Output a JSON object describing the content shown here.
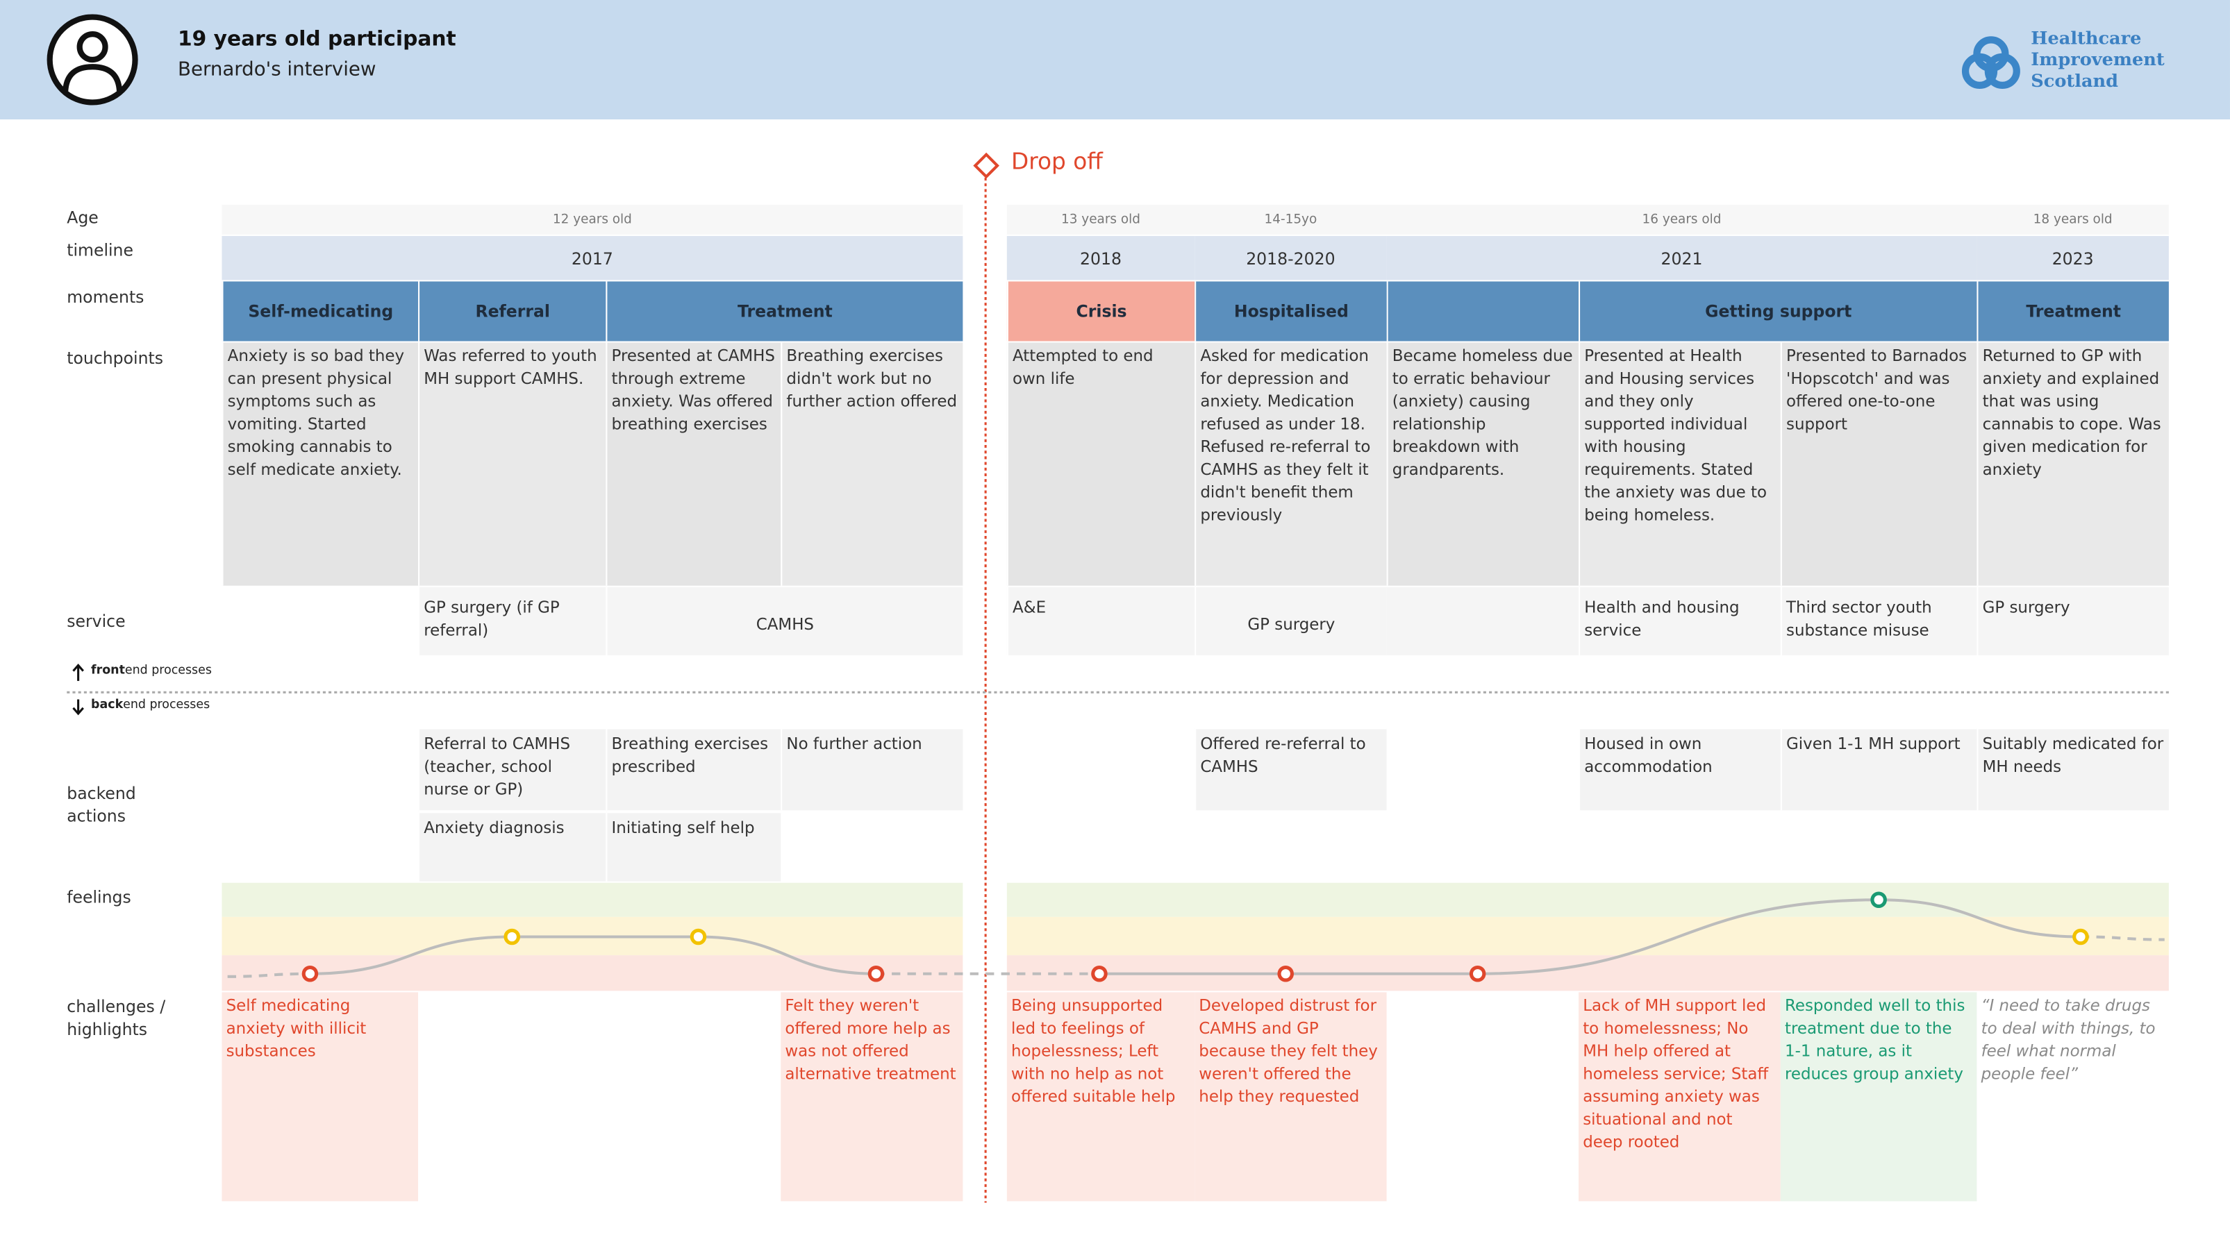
{
  "header": {
    "title": "19 years old participant",
    "subtitle": "Bernardo's interview",
    "logo": [
      "Healthcare",
      "Improvement",
      "Scotland"
    ]
  },
  "drop_off": "Drop off",
  "row_labels": {
    "age": "Age",
    "timeline": "timeline",
    "moments": "moments",
    "touchpoints": "touchpoints",
    "service": "service",
    "frontend_bold": "front",
    "frontend_rest": "end processes",
    "backend_bold": "back",
    "backend_rest": "end processes",
    "backend_actions": "backend actions",
    "feelings": "feelings",
    "challenges": "challenges / highlights"
  },
  "ages": [
    "12 years old",
    "13 years old",
    "14-15yo",
    "16 years old",
    "18 years old"
  ],
  "timeline": [
    "2017",
    "2018",
    "2018-2020",
    "2021",
    "2023"
  ],
  "moments": [
    "Self-medicating",
    "Referral",
    "Treatment",
    "Crisis",
    "Hospitalised",
    "Getting support",
    "Treatment"
  ],
  "touchpoints": [
    "Anxiety is so bad they can present physical symptoms such as vomiting. Started smoking cannabis to self medicate anxiety.",
    "Was referred to youth MH support CAMHS.",
    "Presented at CAMHS through extreme anxiety. Was offered breathing exercises",
    "Breathing exercises didn't work but no further action offered",
    "Attempted to end own life",
    "Asked for medication for depression and anxiety. Medication refused as under 18. Refused re-referral to CAMHS as they felt it didn't benefit them previously",
    "Became homeless due to erratic behaviour (anxiety) causing relationship breakdown with grandparents.",
    "Presented at Health and Housing services and they only supported individual with housing requirements. Stated the anxiety was due to being homeless.",
    "Presented to Barnados 'Hopscotch' and was offered one-to-one support",
    "Returned to GP with anxiety and explained that was using cannabis to cope. Was given medication for anxiety"
  ],
  "services": [
    "GP surgery (if GP referral)",
    "CAMHS",
    "A&E",
    "GP surgery",
    "Health and housing service",
    "Third sector youth substance misuse",
    "GP surgery"
  ],
  "backend_actions": [
    "Referral to CAMHS (teacher, school nurse or GP)",
    "Breathing exercises prescribed",
    "No further action",
    "Offered re-referral to CAMHS",
    "Housed in own accommodation",
    "Given 1-1 MH support",
    "Suitably medicated for MH needs",
    "Anxiety diagnosis",
    "Initiating self help"
  ],
  "challenges": [
    "Self medicating anxiety with illicit substances",
    "Felt they weren't offered more help as was not offered alternative treatment",
    "Being unsupported led to feelings of hopelessness; Left with no help as not offered suitable help",
    "Developed distrust for CAMHS and GP because they felt  they weren't offered the help they requested",
    "Lack of MH support led to homelessness; No MH help offered at homeless service; Staff assuming anxiety was situational and not deep rooted",
    "Responded well to this treatment due to the 1-1 nature, as it reduces group anxiety",
    "“I need to take drugs to deal with things, to feel what normal people feel”"
  ]
}
